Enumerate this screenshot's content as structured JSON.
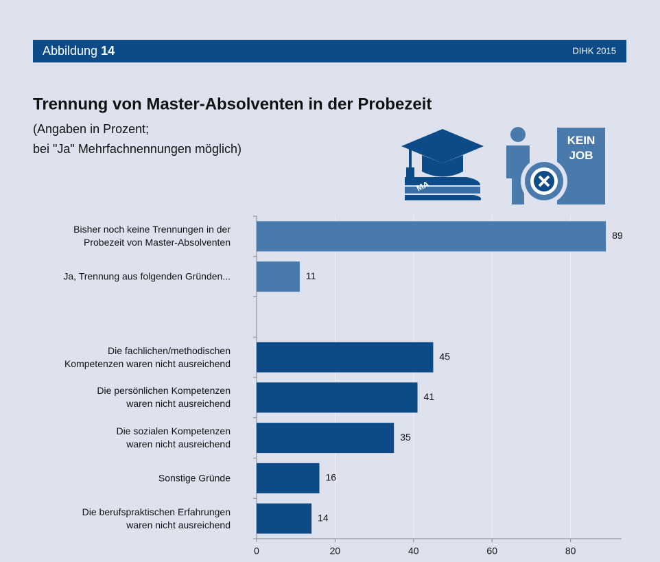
{
  "header": {
    "label": "Abbildung",
    "number": "14",
    "source": "DIHK 2015"
  },
  "icons": {
    "book": "MA",
    "box": "KEIN JOB"
  },
  "chart_data": {
    "type": "barh",
    "title": "Trennung von Master-Absolventen in der Probezeit",
    "subtitle": "(Angaben in Prozent;\nbei \"Ja\" Mehrfachnennungen möglich)",
    "categories": [
      "Bisher noch keine Trennungen in der\nProbezeit von Master-Absolventen",
      "Ja, Trennung aus folgenden Gründen...",
      null,
      "Die fachlichen/methodischen\nKompetenzen waren nicht ausreichend",
      "Die persönlichen Kompetenzen\nwaren nicht ausreichend",
      "Die sozialen Kompetenzen\nwaren nicht ausreichend",
      "Sonstige Gründe",
      "Die berufspraktischen Erfahrungen\nwaren nicht ausreichend"
    ],
    "values": [
      89,
      11,
      null,
      45,
      41,
      35,
      16,
      14
    ],
    "colors": [
      "#4a7aab",
      "#4a7aab",
      null,
      "#0c4a88",
      "#0c4a88",
      "#0c4a88",
      "#0c4a88",
      "#0c4a88"
    ],
    "xlim": [
      0,
      93
    ],
    "xticks": [
      0,
      20,
      40,
      60,
      80
    ],
    "grid": true
  }
}
